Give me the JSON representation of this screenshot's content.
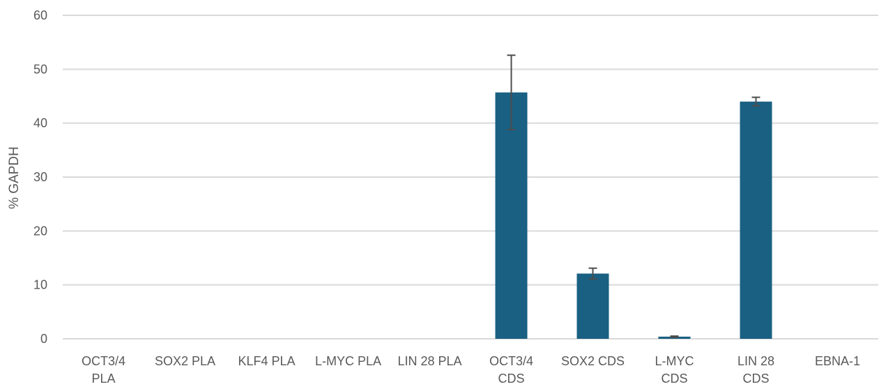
{
  "chart_data": {
    "type": "bar",
    "title": "",
    "xlabel": "",
    "ylabel": "% GAPDH",
    "ylim": [
      0,
      60
    ],
    "yticks": [
      0,
      10,
      20,
      30,
      40,
      50,
      60
    ],
    "grid": true,
    "legend": "none",
    "categories": [
      [
        "OCT3/4",
        "PLA"
      ],
      [
        "SOX2 PLA"
      ],
      [
        "KLF4 PLA"
      ],
      [
        "L-MYC PLA"
      ],
      [
        "LIN 28 PLA"
      ],
      [
        "OCT3/4",
        "CDS"
      ],
      [
        "SOX2 CDS"
      ],
      [
        "L-MYC",
        "CDS"
      ],
      [
        "LIN 28",
        "CDS"
      ],
      [
        "EBNA-1"
      ]
    ],
    "series": [
      {
        "values": [
          0,
          0,
          0,
          0,
          0,
          45.7,
          12.1,
          0.4,
          44.0,
          0
        ],
        "errors": [
          0,
          0,
          0,
          0,
          0,
          6.9,
          1.0,
          0.1,
          0.8,
          0
        ]
      }
    ]
  },
  "colors": {
    "bar": "#1a6082",
    "grid": "#d9d9d9",
    "error_bar": "#4d4d4d",
    "text": "#595959"
  }
}
